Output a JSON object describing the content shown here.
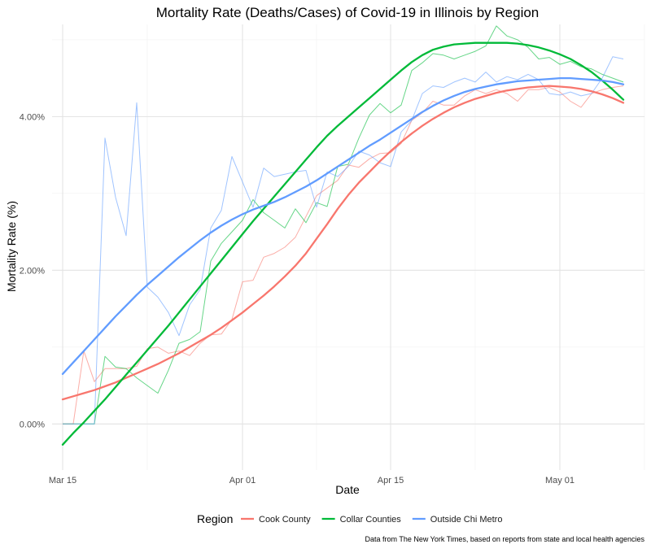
{
  "chart_data": {
    "type": "line",
    "title": "Mortality Rate (Deaths/Cases) of Covid-19 in Illinois by Region",
    "xlabel": "Date",
    "ylabel": "Mortality Rate (%)",
    "x_start": "2020-03-15",
    "x_end": "2020-05-07",
    "xlim": [
      "2020-03-14",
      "2020-05-09"
    ],
    "ylim": [
      -0.6,
      5.2
    ],
    "x_ticks": [
      {
        "date": "2020-03-15",
        "label": "Mar 15"
      },
      {
        "date": "2020-04-01",
        "label": "Apr 01"
      },
      {
        "date": "2020-04-15",
        "label": "Apr 15"
      },
      {
        "date": "2020-05-01",
        "label": "May 01"
      }
    ],
    "x_minor_ticks": [
      "2020-03-23",
      "2020-04-08",
      "2020-04-23",
      "2020-05-09"
    ],
    "y_ticks": [
      {
        "value": 0,
        "label": "0.00%"
      },
      {
        "value": 2,
        "label": "2.00%"
      },
      {
        "value": 4,
        "label": "4.00%"
      }
    ],
    "y_minor_ticks": [
      1,
      3,
      5
    ],
    "grid": true,
    "legend": {
      "title": "Region",
      "position": "bottom"
    },
    "caption": "Data from The New York Times, based on reports from state and local health agencies",
    "series": [
      {
        "name": "Cook County",
        "color": "#F8766D",
        "raw": [
          0,
          0,
          0.95,
          0.55,
          0.72,
          0.72,
          0.72,
          0.75,
          0.98,
          1.0,
          0.92,
          0.95,
          0.89,
          1.05,
          1.16,
          1.17,
          1.36,
          1.85,
          1.87,
          2.17,
          2.22,
          2.3,
          2.43,
          2.7,
          2.97,
          3.07,
          3.17,
          3.37,
          3.34,
          3.45,
          3.52,
          3.53,
          3.65,
          3.95,
          4.05,
          4.2,
          4.15,
          4.15,
          4.27,
          4.35,
          4.3,
          4.35,
          4.3,
          4.2,
          4.35,
          4.35,
          4.38,
          4.32,
          4.2,
          4.12,
          4.3,
          4.35,
          4.38,
          4.4
        ],
        "trend": [
          0.32,
          0.36,
          0.4,
          0.44,
          0.49,
          0.54,
          0.6,
          0.66,
          0.72,
          0.78,
          0.85,
          0.92,
          1.0,
          1.08,
          1.16,
          1.25,
          1.35,
          1.45,
          1.56,
          1.67,
          1.79,
          1.92,
          2.06,
          2.22,
          2.41,
          2.6,
          2.8,
          2.98,
          3.14,
          3.28,
          3.42,
          3.55,
          3.67,
          3.78,
          3.88,
          3.97,
          4.05,
          4.12,
          4.18,
          4.23,
          4.27,
          4.31,
          4.34,
          4.36,
          4.38,
          4.39,
          4.4,
          4.39,
          4.38,
          4.36,
          4.33,
          4.29,
          4.24,
          4.18
        ]
      },
      {
        "name": "Collar Counties",
        "color": "#00BA38",
        "raw": [
          0,
          0,
          0,
          0,
          0.88,
          0.74,
          0.72,
          0.6,
          0.5,
          0.4,
          0.7,
          1.05,
          1.1,
          1.2,
          2.12,
          2.35,
          2.5,
          2.65,
          2.92,
          2.75,
          2.65,
          2.55,
          2.8,
          2.62,
          2.88,
          2.83,
          3.35,
          3.38,
          3.72,
          4.02,
          4.17,
          4.05,
          4.15,
          4.6,
          4.7,
          4.82,
          4.8,
          4.75,
          4.8,
          4.85,
          4.92,
          5.18,
          5.05,
          5.0,
          4.9,
          4.75,
          4.77,
          4.68,
          4.72,
          4.65,
          4.62,
          4.55,
          4.5,
          4.45
        ],
        "trend": [
          -0.27,
          -0.12,
          0.02,
          0.17,
          0.32,
          0.48,
          0.64,
          0.8,
          0.96,
          1.12,
          1.28,
          1.45,
          1.62,
          1.79,
          1.96,
          2.13,
          2.3,
          2.47,
          2.64,
          2.8,
          2.96,
          3.12,
          3.28,
          3.44,
          3.6,
          3.75,
          3.88,
          4.0,
          4.12,
          4.24,
          4.36,
          4.48,
          4.6,
          4.71,
          4.8,
          4.87,
          4.91,
          4.94,
          4.95,
          4.96,
          4.96,
          4.96,
          4.96,
          4.95,
          4.93,
          4.9,
          4.86,
          4.81,
          4.75,
          4.67,
          4.58,
          4.47,
          4.35,
          4.22
        ]
      },
      {
        "name": "Outside Chi Metro",
        "color": "#619CFF",
        "raw": [
          0,
          0,
          0,
          0,
          3.72,
          2.95,
          2.45,
          4.18,
          1.78,
          1.65,
          1.45,
          1.15,
          1.55,
          1.75,
          2.55,
          2.78,
          3.48,
          3.15,
          2.82,
          3.33,
          3.22,
          3.25,
          3.28,
          3.3,
          2.82,
          3.28,
          3.22,
          3.35,
          3.55,
          3.5,
          3.4,
          3.35,
          3.8,
          3.95,
          4.3,
          4.4,
          4.38,
          4.45,
          4.5,
          4.45,
          4.58,
          4.45,
          4.52,
          4.48,
          4.55,
          4.48,
          4.3,
          4.28,
          4.32,
          4.27,
          4.3,
          4.5,
          4.78,
          4.75
        ],
        "trend": [
          0.65,
          0.8,
          0.95,
          1.1,
          1.25,
          1.4,
          1.54,
          1.68,
          1.81,
          1.93,
          2.05,
          2.17,
          2.28,
          2.39,
          2.49,
          2.58,
          2.66,
          2.73,
          2.79,
          2.84,
          2.89,
          2.95,
          3.02,
          3.09,
          3.17,
          3.26,
          3.35,
          3.44,
          3.53,
          3.62,
          3.7,
          3.79,
          3.88,
          3.97,
          4.06,
          4.14,
          4.21,
          4.27,
          4.32,
          4.36,
          4.39,
          4.42,
          4.44,
          4.46,
          4.47,
          4.48,
          4.49,
          4.5,
          4.5,
          4.49,
          4.48,
          4.47,
          4.45,
          4.42
        ]
      }
    ]
  }
}
